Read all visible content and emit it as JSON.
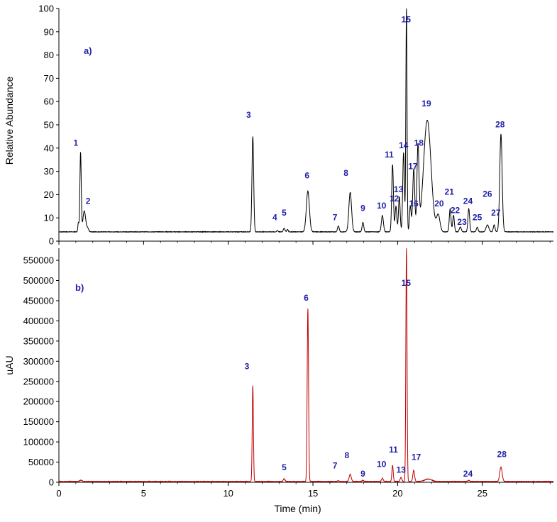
{
  "colors": {
    "panel_a_trace": "#000000",
    "panel_b_trace": "#c00000",
    "labels": "#1f1fa8"
  },
  "chart_data": [
    {
      "type": "line",
      "panel_label": "a)",
      "xlabel": "",
      "ylabel": "Relative Abundance",
      "xlim": [
        0,
        29.2
      ],
      "ylim": [
        0,
        100
      ],
      "yticks": [
        0,
        10,
        20,
        30,
        40,
        50,
        60,
        70,
        80,
        90,
        100
      ],
      "baseline": 4,
      "x_tick_labels_shown": false,
      "series": [
        {
          "values_form": "gaussian peaks over baseline",
          "peaks": [
            {
              "x": 1.28,
              "y": 38,
              "w": 0.04
            },
            {
              "x": 1.15,
              "y": 8,
              "w": 0.03
            },
            {
              "x": 1.5,
              "y": 13,
              "w": 0.08
            },
            {
              "x": 1.7,
              "y": 5.5,
              "w": 0.06
            },
            {
              "x": 11.45,
              "y": 45,
              "w": 0.05
            },
            {
              "x": 12.9,
              "y": 4.5,
              "w": 0.04
            },
            {
              "x": 13.3,
              "y": 5.5,
              "w": 0.05
            },
            {
              "x": 13.5,
              "y": 5,
              "w": 0.04
            },
            {
              "x": 14.7,
              "y": 21.5,
              "w": 0.09
            },
            {
              "x": 16.5,
              "y": 6.5,
              "w": 0.05
            },
            {
              "x": 17.2,
              "y": 21,
              "w": 0.08
            },
            {
              "x": 17.95,
              "y": 8,
              "w": 0.05
            },
            {
              "x": 19.1,
              "y": 11,
              "w": 0.06
            },
            {
              "x": 19.7,
              "y": 33,
              "w": 0.05
            },
            {
              "x": 19.9,
              "y": 15,
              "w": 0.05
            },
            {
              "x": 20.1,
              "y": 19,
              "w": 0.05
            },
            {
              "x": 20.35,
              "y": 38,
              "w": 0.05
            },
            {
              "x": 20.52,
              "y": 100,
              "w": 0.035
            },
            {
              "x": 20.75,
              "y": 15,
              "w": 0.05
            },
            {
              "x": 20.95,
              "y": 31,
              "w": 0.06
            },
            {
              "x": 21.2,
              "y": 40,
              "w": 0.06
            },
            {
              "x": 21.75,
              "y": 52,
              "w": 0.22
            },
            {
              "x": 22.4,
              "y": 11,
              "w": 0.1
            },
            {
              "x": 23.1,
              "y": 14,
              "w": 0.05
            },
            {
              "x": 23.3,
              "y": 11,
              "w": 0.05
            },
            {
              "x": 23.7,
              "y": 6,
              "w": 0.06
            },
            {
              "x": 24.2,
              "y": 14,
              "w": 0.05
            },
            {
              "x": 24.7,
              "y": 6,
              "w": 0.05
            },
            {
              "x": 25.3,
              "y": 7,
              "w": 0.08
            },
            {
              "x": 25.7,
              "y": 7,
              "w": 0.05
            },
            {
              "x": 26.1,
              "y": 46,
              "w": 0.07
            }
          ]
        }
      ],
      "annotations": [
        {
          "text": "1",
          "x": 1.0,
          "y": 41
        },
        {
          "text": "2",
          "x": 1.72,
          "y": 16
        },
        {
          "text": "3",
          "x": 11.2,
          "y": 53
        },
        {
          "text": "4",
          "x": 12.75,
          "y": 9
        },
        {
          "text": "5",
          "x": 13.3,
          "y": 11
        },
        {
          "text": "6",
          "x": 14.65,
          "y": 27
        },
        {
          "text": "7",
          "x": 16.3,
          "y": 9
        },
        {
          "text": "8",
          "x": 16.95,
          "y": 28
        },
        {
          "text": "9",
          "x": 17.95,
          "y": 13
        },
        {
          "text": "10",
          "x": 19.05,
          "y": 14
        },
        {
          "text": "11",
          "x": 19.5,
          "y": 36
        },
        {
          "text": "12",
          "x": 19.8,
          "y": 17
        },
        {
          "text": "13",
          "x": 20.05,
          "y": 21
        },
        {
          "text": "14",
          "x": 20.35,
          "y": 40
        },
        {
          "text": "15",
          "x": 20.5,
          "y": 94
        },
        {
          "text": "16",
          "x": 20.95,
          "y": 15
        },
        {
          "text": "17",
          "x": 20.9,
          "y": 31
        },
        {
          "text": "18",
          "x": 21.25,
          "y": 41
        },
        {
          "text": "19",
          "x": 21.7,
          "y": 58
        },
        {
          "text": "20",
          "x": 22.45,
          "y": 15
        },
        {
          "text": "21",
          "x": 23.05,
          "y": 20
        },
        {
          "text": "22",
          "x": 23.4,
          "y": 12
        },
        {
          "text": "23",
          "x": 23.8,
          "y": 7
        },
        {
          "text": "24",
          "x": 24.15,
          "y": 16
        },
        {
          "text": "25",
          "x": 24.7,
          "y": 9
        },
        {
          "text": "26",
          "x": 25.3,
          "y": 19
        },
        {
          "text": "27",
          "x": 25.8,
          "y": 11
        },
        {
          "text": "28",
          "x": 26.05,
          "y": 49
        }
      ]
    },
    {
      "type": "line",
      "panel_label": "b)",
      "xlabel": "Time (min)",
      "ylabel": "uAU",
      "xlim": [
        0,
        29.2
      ],
      "ylim": [
        0,
        580000
      ],
      "yticks": [
        0,
        50000,
        100000,
        150000,
        200000,
        250000,
        300000,
        350000,
        400000,
        450000,
        500000,
        550000
      ],
      "ytick_labels": [
        "0",
        "50000",
        "100000",
        "150000",
        "200000",
        "250000",
        "300000",
        "350000",
        "400000",
        "450000",
        "500000",
        "550000"
      ],
      "xticks": [
        0,
        5,
        10,
        15,
        20,
        25
      ],
      "xtick_labels": [
        "0",
        "5",
        "10",
        "15",
        "20",
        "25"
      ],
      "baseline": 2000,
      "series": [
        {
          "values_form": "gaussian peaks over baseline",
          "peaks": [
            {
              "x": 1.3,
              "y": 5000,
              "w": 0.08
            },
            {
              "x": 11.45,
              "y": 240000,
              "w": 0.035
            },
            {
              "x": 13.3,
              "y": 9000,
              "w": 0.05
            },
            {
              "x": 14.7,
              "y": 430000,
              "w": 0.04
            },
            {
              "x": 16.5,
              "y": 4000,
              "w": 0.05
            },
            {
              "x": 17.2,
              "y": 20000,
              "w": 0.06
            },
            {
              "x": 17.95,
              "y": 5000,
              "w": 0.05
            },
            {
              "x": 19.1,
              "y": 10000,
              "w": 0.05
            },
            {
              "x": 19.7,
              "y": 42000,
              "w": 0.04
            },
            {
              "x": 20.2,
              "y": 12000,
              "w": 0.05
            },
            {
              "x": 20.52,
              "y": 580000,
              "w": 0.035
            },
            {
              "x": 20.95,
              "y": 30000,
              "w": 0.05
            },
            {
              "x": 21.8,
              "y": 8000,
              "w": 0.2
            },
            {
              "x": 24.2,
              "y": 5000,
              "w": 0.05
            },
            {
              "x": 26.1,
              "y": 38000,
              "w": 0.07
            }
          ]
        }
      ],
      "annotations": [
        {
          "text": "3",
          "x": 11.1,
          "y": 280000
        },
        {
          "text": "5",
          "x": 13.3,
          "y": 30000
        },
        {
          "text": "6",
          "x": 14.6,
          "y": 450000
        },
        {
          "text": "7",
          "x": 16.3,
          "y": 34000
        },
        {
          "text": "8",
          "x": 17.0,
          "y": 60000
        },
        {
          "text": "9",
          "x": 17.95,
          "y": 14000
        },
        {
          "text": "10",
          "x": 19.05,
          "y": 38000
        },
        {
          "text": "11",
          "x": 19.75,
          "y": 74000
        },
        {
          "text": "13",
          "x": 20.2,
          "y": 24000
        },
        {
          "text": "15",
          "x": 20.5,
          "y": 487000
        },
        {
          "text": "17",
          "x": 21.1,
          "y": 55000
        },
        {
          "text": "24",
          "x": 24.15,
          "y": 14000
        },
        {
          "text": "28",
          "x": 26.15,
          "y": 62000
        }
      ]
    }
  ]
}
